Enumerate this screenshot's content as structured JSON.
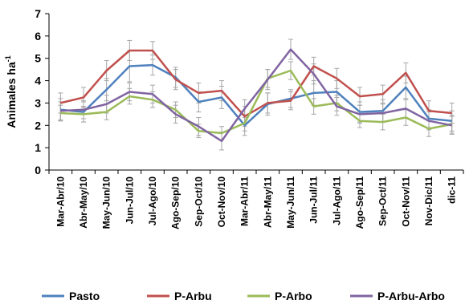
{
  "chart_data": {
    "type": "line",
    "title": "",
    "xlabel": "",
    "ylabel": "Animales ha",
    "ylabel_sup": "-1",
    "ylim": [
      0,
      7
    ],
    "yticks": [
      0,
      1,
      2,
      3,
      4,
      5,
      6,
      7
    ],
    "grid": false,
    "legend_position": "bottom",
    "error_bars": true,
    "categories": [
      "Mar-Abr/10",
      "Abr-May/10",
      "May-Jun/10",
      "Jun-Jul/10",
      "Jul-Ago/10",
      "Ago-Sep/10",
      "Sep-Oct/10",
      "Oct-Nov/10",
      "Mar-Abr/11",
      "Abr-May/11",
      "May-Jun/11",
      "Jun-Jul/11",
      "Jul-Ago/11",
      "Ago-Sep/11",
      "Sep-Oct/11",
      "Oct-Nov/11",
      "Nov-Dic/11",
      "dic-11"
    ],
    "series": [
      {
        "name": "Pasto",
        "color": "#4f81bd",
        "values": [
          2.7,
          2.6,
          3.6,
          4.65,
          4.7,
          4.15,
          3.05,
          3.25,
          2.0,
          2.95,
          3.2,
          3.45,
          3.5,
          2.6,
          2.65,
          3.7,
          2.3,
          2.2
        ],
        "errors": [
          0.5,
          0.45,
          0.5,
          0.7,
          0.45,
          0.45,
          0.45,
          0.5,
          0.45,
          0.5,
          0.4,
          0.55,
          0.5,
          0.45,
          0.5,
          0.5,
          0.4,
          0.45
        ]
      },
      {
        "name": "P-Arbu",
        "color": "#c0504d",
        "values": [
          3.0,
          3.25,
          4.45,
          5.35,
          5.35,
          4.05,
          3.45,
          3.55,
          2.4,
          3.0,
          3.1,
          4.65,
          4.1,
          3.3,
          3.4,
          4.35,
          2.65,
          2.55
        ],
        "errors": [
          0.45,
          0.45,
          0.45,
          0.45,
          0.4,
          0.45,
          0.45,
          0.45,
          0.45,
          0.45,
          0.4,
          0.4,
          0.45,
          0.4,
          0.4,
          0.45,
          0.45,
          0.45
        ]
      },
      {
        "name": "P-Arbo",
        "color": "#9bbb59",
        "values": [
          2.55,
          2.5,
          2.6,
          3.3,
          3.15,
          2.7,
          1.75,
          1.65,
          2.1,
          4.1,
          4.45,
          2.85,
          3.0,
          2.2,
          2.15,
          2.35,
          1.85,
          2.05
        ],
        "errors": [
          0.35,
          0.35,
          0.35,
          0.35,
          0.35,
          0.35,
          0.3,
          0.3,
          0.35,
          0.4,
          0.4,
          0.35,
          0.35,
          0.3,
          0.35,
          0.35,
          0.35,
          0.4
        ]
      },
      {
        "name": "P-Arbu-Arbo",
        "color": "#8064a2",
        "values": [
          2.65,
          2.7,
          2.95,
          3.5,
          3.4,
          2.5,
          1.95,
          1.3,
          2.75,
          4.05,
          5.4,
          4.3,
          2.85,
          2.5,
          2.55,
          2.75,
          2.2,
          2.0
        ],
        "errors": [
          0.4,
          0.4,
          0.4,
          0.4,
          0.4,
          0.4,
          0.4,
          0.4,
          0.4,
          0.45,
          0.45,
          0.45,
          0.4,
          0.4,
          0.4,
          0.4,
          0.4,
          0.4
        ]
      }
    ]
  }
}
